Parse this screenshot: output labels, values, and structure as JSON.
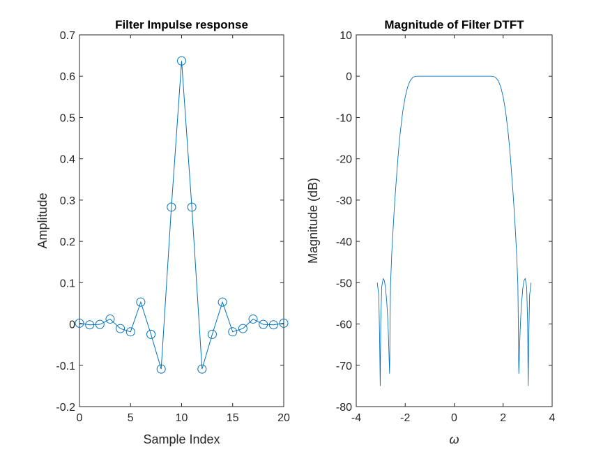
{
  "colors": {
    "series": "#0072BD",
    "axes": "#262626",
    "background": "#ffffff"
  },
  "chart_data": [
    {
      "type": "line",
      "title": "Filter Impulse response",
      "xlabel": "Sample Index",
      "ylabel": "Amplitude",
      "xlim": [
        0,
        20
      ],
      "ylim": [
        -0.2,
        0.7
      ],
      "xticks": [
        0,
        5,
        10,
        15,
        20
      ],
      "yticks": [
        -0.2,
        -0.1,
        0,
        0.1,
        0.2,
        0.3,
        0.4,
        0.5,
        0.6,
        0.7
      ],
      "marker": "circle",
      "grid": false,
      "series": [
        {
          "x": [
            0,
            1,
            2,
            3,
            4,
            5,
            6,
            7,
            8,
            9,
            10,
            11,
            12,
            13,
            14,
            15,
            16,
            17,
            18,
            19,
            20
          ],
          "values": [
            0.002,
            -0.002,
            -0.001,
            0.012,
            -0.011,
            -0.019,
            0.053,
            -0.025,
            -0.109,
            0.283,
            0.637,
            0.283,
            -0.109,
            -0.025,
            0.053,
            -0.019,
            -0.011,
            0.012,
            -0.001,
            -0.002,
            0.002
          ]
        }
      ]
    },
    {
      "type": "line",
      "title": "Magnitude of Filter DTFT",
      "xlabel": "ω",
      "ylabel": "Magnitude (dB)",
      "xlim": [
        -4,
        4
      ],
      "ylim": [
        -80,
        10
      ],
      "xticks": [
        -4,
        -2,
        0,
        2,
        4
      ],
      "yticks": [
        -80,
        -70,
        -60,
        -50,
        -40,
        -30,
        -20,
        -10,
        0,
        10
      ],
      "grid": false,
      "series": [
        {
          "x": [
            -3.1416,
            -3.08,
            -3.05,
            -3.02,
            -3.0,
            -2.96,
            -2.9,
            -2.85,
            -2.8,
            -2.75,
            -2.72,
            -2.69,
            -2.67,
            -2.65,
            -2.64,
            -2.63,
            -2.62,
            -2.6,
            -2.55,
            -2.5,
            -2.45,
            -2.4,
            -2.35,
            -2.3,
            -2.25,
            -2.2,
            -2.1,
            -2.0,
            -1.9,
            -1.8,
            -1.7,
            -1.6,
            -1.5,
            -1.4,
            -1.0,
            0.0,
            1.0,
            1.4,
            1.5,
            1.6,
            1.7,
            1.8,
            1.9,
            2.0,
            2.1,
            2.2,
            2.25,
            2.3,
            2.35,
            2.4,
            2.45,
            2.5,
            2.55,
            2.6,
            2.62,
            2.63,
            2.64,
            2.65,
            2.67,
            2.69,
            2.72,
            2.75,
            2.8,
            2.85,
            2.9,
            2.96,
            3.0,
            3.02,
            3.05,
            3.08,
            3.1416
          ],
          "values": [
            -50.0,
            -53.0,
            -62.0,
            -75.0,
            -60.0,
            -51.0,
            -49.0,
            -49.5,
            -51.5,
            -55.0,
            -58.0,
            -62.0,
            -66.0,
            -70.0,
            -72.0,
            -68.0,
            -60.0,
            -50.5,
            -43.0,
            -37.5,
            -32.5,
            -28.0,
            -24.0,
            -20.0,
            -16.5,
            -13.5,
            -8.5,
            -5.0,
            -2.6,
            -1.1,
            -0.35,
            -0.05,
            0.0,
            0.0,
            0.0,
            0.0,
            0.0,
            0.0,
            0.0,
            -0.05,
            -0.35,
            -1.1,
            -2.6,
            -5.0,
            -8.5,
            -13.5,
            -16.5,
            -20.0,
            -24.0,
            -28.0,
            -32.5,
            -37.5,
            -43.0,
            -50.5,
            -60.0,
            -68.0,
            -72.0,
            -70.0,
            -66.0,
            -62.0,
            -58.0,
            -55.0,
            -51.5,
            -49.5,
            -49.0,
            -51.0,
            -60.0,
            -75.0,
            -62.0,
            -53.0,
            -50.0
          ]
        }
      ]
    }
  ]
}
